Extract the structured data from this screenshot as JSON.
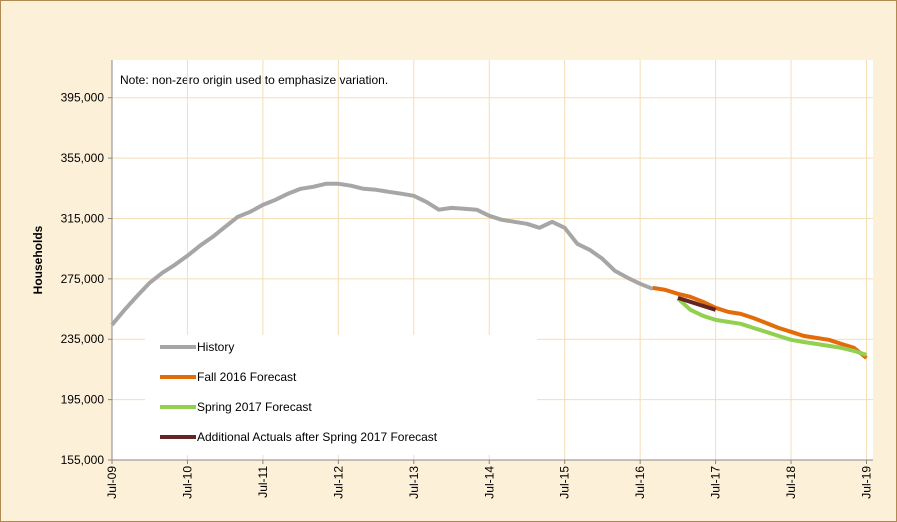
{
  "chart_data": {
    "type": "line",
    "y_label": "Households",
    "note": "Note: non-zero origin used to emphasize variation.",
    "categories": [
      "Jul-09",
      null,
      null,
      null,
      null,
      null,
      "Jul-10",
      null,
      null,
      null,
      null,
      null,
      "Jul-11",
      null,
      null,
      null,
      null,
      null,
      "Jul-12",
      null,
      null,
      null,
      null,
      null,
      "Jul-13",
      null,
      null,
      null,
      null,
      null,
      "Jul-14",
      null,
      null,
      null,
      null,
      null,
      "Jul-15",
      null,
      null,
      null,
      null,
      null,
      "Jul-16",
      null,
      null,
      null,
      null,
      null,
      "Jul-17",
      null,
      null,
      null,
      null,
      null,
      "Jul-18",
      null,
      null,
      null,
      null,
      null,
      "Jul-19"
    ],
    "ylim": [
      155000,
      420000
    ],
    "yticks": [
      {
        "value": 155000,
        "label": "155,000"
      },
      {
        "value": 195000,
        "label": "195,000"
      },
      {
        "value": 235000,
        "label": "235,000"
      },
      {
        "value": 275000,
        "label": "275,000"
      },
      {
        "value": 315000,
        "label": "315,000"
      },
      {
        "value": 355000,
        "label": "355,000"
      },
      {
        "value": 395000,
        "label": "395,000"
      }
    ],
    "grid": true,
    "series": [
      {
        "name": "History",
        "color": "#a6a6a6",
        "values": [
          244500,
          254500,
          263700,
          272400,
          279000,
          284300,
          290300,
          297000,
          302800,
          309500,
          316100,
          319400,
          324000,
          327400,
          331400,
          334700,
          336000,
          338000,
          338000,
          336700,
          334700,
          334000,
          332700,
          331400,
          330000,
          326000,
          320800,
          322000,
          321400,
          320800,
          316800,
          314100,
          312800,
          311500,
          308800,
          312800,
          308800,
          298200,
          294200,
          288300,
          280300,
          275700,
          271700,
          268400,
          null,
          null,
          null,
          null,
          null,
          null,
          null,
          null,
          null,
          null,
          null,
          null,
          null,
          null,
          null,
          null,
          null
        ]
      },
      {
        "name": "Fall 2016 Forecast",
        "color": "#e36c0a",
        "values": [
          null,
          null,
          null,
          null,
          null,
          null,
          null,
          null,
          null,
          null,
          null,
          null,
          null,
          null,
          null,
          null,
          null,
          null,
          null,
          null,
          null,
          null,
          null,
          null,
          null,
          null,
          null,
          null,
          null,
          null,
          null,
          null,
          null,
          null,
          null,
          null,
          null,
          null,
          null,
          null,
          null,
          null,
          null,
          269000,
          267700,
          265100,
          263100,
          259800,
          255800,
          253100,
          251800,
          249100,
          245800,
          242500,
          239900,
          237200,
          235900,
          234600,
          231900,
          229300,
          222600
        ]
      },
      {
        "name": "Spring 2017 Forecast",
        "color": "#92d050",
        "values": [
          null,
          null,
          null,
          null,
          null,
          null,
          null,
          null,
          null,
          null,
          null,
          null,
          null,
          null,
          null,
          null,
          null,
          null,
          null,
          null,
          null,
          null,
          null,
          null,
          null,
          null,
          null,
          null,
          null,
          null,
          null,
          null,
          null,
          null,
          null,
          null,
          null,
          null,
          null,
          null,
          null,
          null,
          null,
          null,
          null,
          262000,
          254500,
          250500,
          247800,
          246500,
          245200,
          242500,
          239900,
          237200,
          234600,
          233200,
          231900,
          230600,
          229300,
          227300,
          224600
        ]
      },
      {
        "name": "Additional Actuals after Spring 2017 Forecast",
        "color": "#632523",
        "values": [
          null,
          null,
          null,
          null,
          null,
          null,
          null,
          null,
          null,
          null,
          null,
          null,
          null,
          null,
          null,
          null,
          null,
          null,
          null,
          null,
          null,
          null,
          null,
          null,
          null,
          null,
          null,
          null,
          null,
          null,
          null,
          null,
          null,
          null,
          null,
          null,
          null,
          null,
          null,
          null,
          null,
          null,
          null,
          null,
          null,
          262400,
          259800,
          257100,
          254500,
          null,
          null,
          null,
          null,
          null,
          null,
          null,
          null,
          null,
          null,
          null,
          null
        ]
      }
    ]
  }
}
